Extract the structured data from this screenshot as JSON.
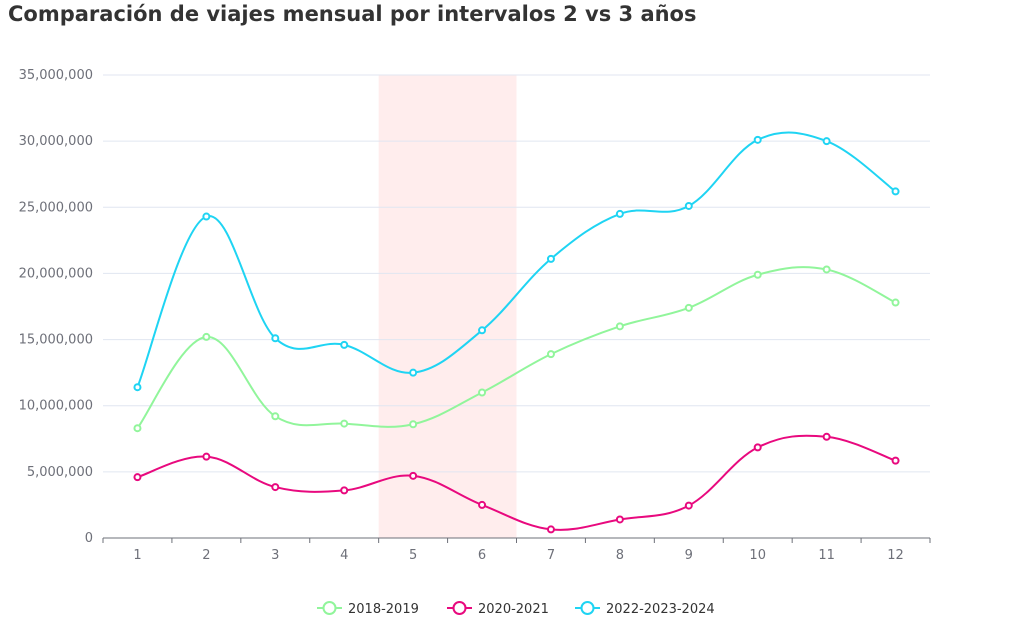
{
  "chart_data": {
    "type": "line",
    "title": "Comparación de viajes mensual por intervalos 2 vs 3 años",
    "xlabel": "",
    "ylabel": "",
    "categories": [
      "1",
      "2",
      "3",
      "4",
      "5",
      "6",
      "7",
      "8",
      "9",
      "10",
      "11",
      "12"
    ],
    "ylim": [
      0,
      35000000
    ],
    "yticks": [
      0,
      5000000,
      10000000,
      15000000,
      20000000,
      25000000,
      30000000,
      35000000
    ],
    "ytick_labels": [
      "0",
      "5,000,000",
      "10,000,000",
      "15,000,000",
      "20,000,000",
      "25,000,000",
      "30,000,000",
      "35,000,000"
    ],
    "grid": true,
    "smooth": true,
    "legend_position": "bottom",
    "highlight_region": {
      "from": "4",
      "to": "6",
      "color": "#ffeded"
    },
    "series": [
      {
        "name": "2018-2019",
        "color": "#91f59b",
        "values": [
          8300000,
          15200000,
          9200000,
          8650000,
          8600000,
          11000000,
          13900000,
          16000000,
          17400000,
          19900000,
          20300000,
          17800000
        ]
      },
      {
        "name": "2020-2021",
        "color": "#e8097e",
        "values": [
          4600000,
          6150000,
          3850000,
          3600000,
          4700000,
          2500000,
          650000,
          1400000,
          2450000,
          6850000,
          7650000,
          5850000
        ]
      },
      {
        "name": "2022-2023-2024",
        "color": "#1fd4f3",
        "values": [
          11400000,
          24300000,
          15100000,
          14600000,
          12500000,
          15700000,
          21100000,
          24500000,
          25100000,
          30100000,
          30000000,
          26200000
        ]
      }
    ]
  }
}
